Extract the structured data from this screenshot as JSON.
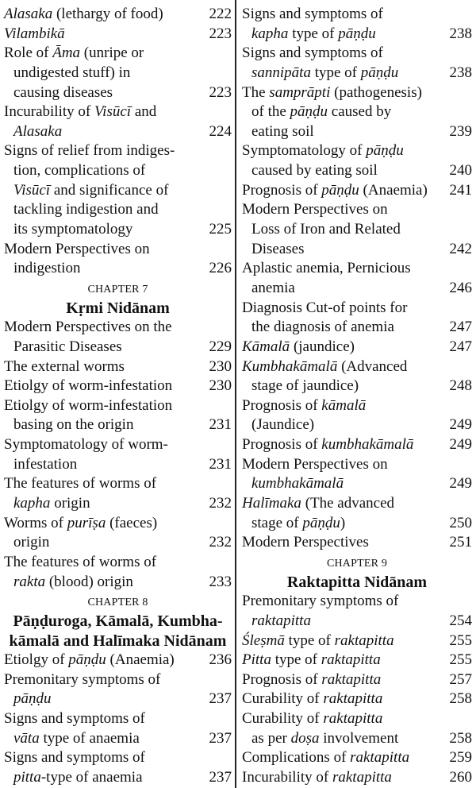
{
  "columns": [
    {
      "items": [
        {
          "type": "entry",
          "lines": [
            [
              {
                "i": "Alasaka"
              },
              " (lethargy of food)"
            ]
          ],
          "page": "222"
        },
        {
          "type": "entry",
          "lines": [
            [
              {
                "i": "Vilambikā"
              }
            ]
          ],
          "page": "223"
        },
        {
          "type": "entry",
          "lines": [
            [
              "Role of ",
              {
                "i": "Āma"
              },
              " (unripe or"
            ],
            [
              "undigested stuff) in"
            ],
            [
              "causing diseases"
            ]
          ],
          "page": "223"
        },
        {
          "type": "entry",
          "lines": [
            [
              "Incurability of ",
              {
                "i": "Visūcī"
              },
              " and"
            ],
            [
              {
                "i": "Alasaka"
              }
            ]
          ],
          "page": "224"
        },
        {
          "type": "entry",
          "lines": [
            [
              "Signs of relief from indiges-"
            ],
            [
              "tion, complications of"
            ],
            [
              {
                "i": "Visūcī"
              },
              " and significance of"
            ],
            [
              "tackling indigestion and"
            ],
            [
              "its symptomatology"
            ]
          ],
          "page": "225"
        },
        {
          "type": "entry",
          "lines": [
            [
              "Modern Perspectives on"
            ],
            [
              "indigestion"
            ]
          ],
          "page": "226"
        },
        {
          "type": "chapter",
          "label": "CHAPTER 7",
          "title": [
            "Kṛmi Nidānam"
          ]
        },
        {
          "type": "entry",
          "lines": [
            [
              "Modern Perspectives on the"
            ],
            [
              "Parasitic Diseases"
            ]
          ],
          "page": "229"
        },
        {
          "type": "entry",
          "lines": [
            [
              "The external worms"
            ]
          ],
          "page": "230"
        },
        {
          "type": "entry",
          "lines": [
            [
              "Etiolgy of worm-infestation"
            ]
          ],
          "page": "230"
        },
        {
          "type": "entry",
          "lines": [
            [
              "Etiolgy of worm-infestation"
            ],
            [
              "basing on the origin"
            ]
          ],
          "page": "231"
        },
        {
          "type": "entry",
          "lines": [
            [
              "Symptomatology of worm-"
            ],
            [
              "infestation"
            ]
          ],
          "page": "231"
        },
        {
          "type": "entry",
          "lines": [
            [
              "The features of worms of"
            ],
            [
              {
                "i": "kapha"
              },
              " origin"
            ]
          ],
          "page": "232"
        },
        {
          "type": "entry",
          "lines": [
            [
              "Worms of ",
              {
                "i": "purīṣa"
              },
              " (faeces)"
            ],
            [
              "origin"
            ]
          ],
          "page": "232"
        },
        {
          "type": "entry",
          "lines": [
            [
              "The features of worms of"
            ],
            [
              {
                "i": "rakta"
              },
              " (blood) origin"
            ]
          ],
          "page": "233"
        },
        {
          "type": "chapter",
          "label": "CHAPTER 8",
          "title": [
            "Pāṇḍuroga, Kāmalā, Kumbha-",
            "kāmalā and Halīmaka Nidānam"
          ]
        },
        {
          "type": "entry",
          "lines": [
            [
              "Etiolgy of ",
              {
                "i": "pāṇḍu"
              },
              " (Anaemia)"
            ]
          ],
          "page": "236"
        },
        {
          "type": "entry",
          "lines": [
            [
              "Premonitary symptoms of"
            ],
            [
              {
                "i": "pāṇḍu"
              }
            ]
          ],
          "page": "237"
        },
        {
          "type": "entry",
          "lines": [
            [
              "Signs and symptoms of"
            ],
            [
              {
                "i": "vāta"
              },
              " type of anaemia"
            ]
          ],
          "page": "237"
        },
        {
          "type": "entry",
          "lines": [
            [
              "Signs and symptoms of"
            ],
            [
              {
                "i": "pitta"
              },
              "-type of anaemia"
            ]
          ],
          "page": "237"
        }
      ]
    },
    {
      "items": [
        {
          "type": "entry",
          "lines": [
            [
              "Signs and symptoms of"
            ],
            [
              {
                "i": "kapha"
              },
              " type of ",
              {
                "i": "pāṇḍu"
              }
            ]
          ],
          "page": "238"
        },
        {
          "type": "entry",
          "lines": [
            [
              "Signs and symptoms of"
            ],
            [
              {
                "i": "sannipāta"
              },
              " type of ",
              {
                "i": "pāṇḍu"
              }
            ]
          ],
          "page": "238"
        },
        {
          "type": "entry",
          "lines": [
            [
              "The ",
              {
                "i": "samprāpti"
              },
              " (pathogenesis)"
            ],
            [
              "of the ",
              {
                "i": "pāṇḍu"
              },
              " caused by"
            ],
            [
              "eating soil"
            ]
          ],
          "page": "239"
        },
        {
          "type": "entry",
          "lines": [
            [
              "Symptomatology of ",
              {
                "i": "pāṇḍu"
              }
            ],
            [
              "caused by eating soil"
            ]
          ],
          "page": "240"
        },
        {
          "type": "entry",
          "lines": [
            [
              "Prognosis of ",
              {
                "i": "pāṇḍu"
              },
              " (Anaemia)"
            ]
          ],
          "page": "241"
        },
        {
          "type": "entry",
          "lines": [
            [
              "Modern Perspectives on"
            ],
            [
              "Loss of Iron and Related"
            ],
            [
              "Diseases"
            ]
          ],
          "page": "242"
        },
        {
          "type": "entry",
          "lines": [
            [
              "Aplastic anemia, Pernicious"
            ],
            [
              "anemia"
            ]
          ],
          "page": "246"
        },
        {
          "type": "entry",
          "lines": [
            [
              "Diagnosis Cut-of points for"
            ],
            [
              "the diagnosis of anemia"
            ]
          ],
          "page": "247"
        },
        {
          "type": "entry",
          "lines": [
            [
              {
                "i": "Kāmalā"
              },
              " (jaundice)"
            ]
          ],
          "page": "247"
        },
        {
          "type": "entry",
          "lines": [
            [
              {
                "i": "Kumbhakāmalā"
              },
              " (Advanced"
            ],
            [
              "stage of jaundice)"
            ]
          ],
          "page": "248"
        },
        {
          "type": "entry",
          "lines": [
            [
              "Prognosis of ",
              {
                "i": "kāmalā"
              }
            ],
            [
              "(Jaundice)"
            ]
          ],
          "page": "249"
        },
        {
          "type": "entry",
          "lines": [
            [
              "Prognosis of ",
              {
                "i": "kumbhakāmalā"
              }
            ]
          ],
          "page": "249"
        },
        {
          "type": "entry",
          "lines": [
            [
              "Modern Perspectives on"
            ],
            [
              {
                "i": "kumbhakāmalā"
              }
            ]
          ],
          "page": "249"
        },
        {
          "type": "entry",
          "lines": [
            [
              {
                "i": "Halīmaka"
              },
              " (The advanced"
            ],
            [
              "stage of ",
              {
                "i": "pāṇḍu"
              },
              ")"
            ]
          ],
          "page": "250"
        },
        {
          "type": "entry",
          "lines": [
            [
              "Modern Perspectives"
            ]
          ],
          "page": "251"
        },
        {
          "type": "chapter",
          "label": "CHAPTER 9",
          "title": [
            "Raktapitta Nidānam"
          ]
        },
        {
          "type": "entry",
          "lines": [
            [
              "Premonitary symptoms of"
            ],
            [
              {
                "i": "raktapitta"
              }
            ]
          ],
          "page": "254"
        },
        {
          "type": "entry",
          "lines": [
            [
              {
                "i": "Śleṣmā"
              },
              " type of ",
              {
                "i": "raktapitta"
              }
            ]
          ],
          "page": "255"
        },
        {
          "type": "entry",
          "lines": [
            [
              {
                "i": "Pitta"
              },
              " type of ",
              {
                "i": "raktapitta"
              }
            ]
          ],
          "page": "255"
        },
        {
          "type": "entry",
          "lines": [
            [
              "Prognosis of ",
              {
                "i": "raktapitta"
              }
            ]
          ],
          "page": "257"
        },
        {
          "type": "entry",
          "lines": [
            [
              "Curability of ",
              {
                "i": "raktapitta"
              }
            ]
          ],
          "page": "258"
        },
        {
          "type": "entry",
          "lines": [
            [
              "Curability of ",
              {
                "i": "raktapitta"
              }
            ],
            [
              "as per ",
              {
                "i": "doṣa"
              },
              " involvement"
            ]
          ],
          "page": "258"
        },
        {
          "type": "entry",
          "lines": [
            [
              "Complications of ",
              {
                "i": "raktapitta"
              }
            ]
          ],
          "page": "259"
        },
        {
          "type": "entry",
          "lines": [
            [
              "Incurability of ",
              {
                "i": "raktapitta"
              }
            ]
          ],
          "page": "260"
        }
      ]
    }
  ]
}
